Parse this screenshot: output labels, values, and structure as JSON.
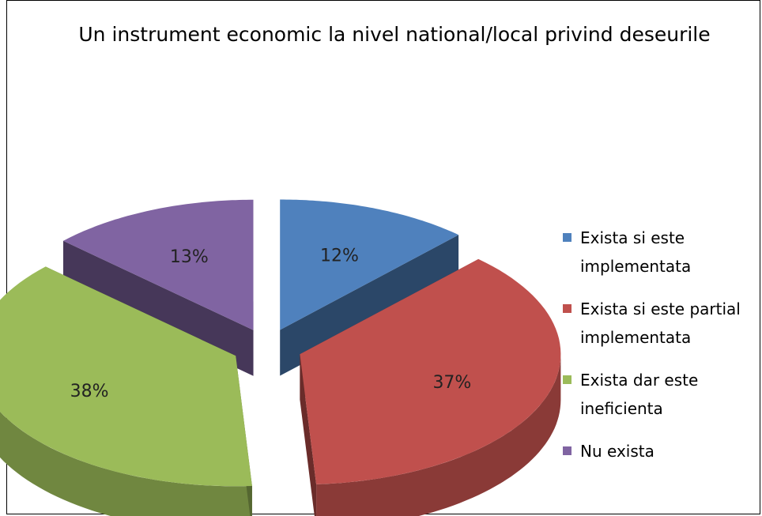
{
  "chart_data": {
    "type": "pie",
    "title": "Un instrument economic la nivel national/local privind deseurile",
    "slices": [
      {
        "label": "Exista si este implementata",
        "value": 12,
        "data_label": "12%",
        "color": "#4f81bd"
      },
      {
        "label": "Exista si este partial implementata",
        "value": 37,
        "data_label": "37%",
        "color": "#c0504d"
      },
      {
        "label": "Exista dar este ineficienta",
        "value": 38,
        "data_label": "38%",
        "color": "#9bbb59"
      },
      {
        "label": "Nu exista",
        "value": 13,
        "data_label": "13%",
        "color": "#8064a2"
      }
    ],
    "style": "3d-exploded-pie",
    "legend_position": "right"
  }
}
